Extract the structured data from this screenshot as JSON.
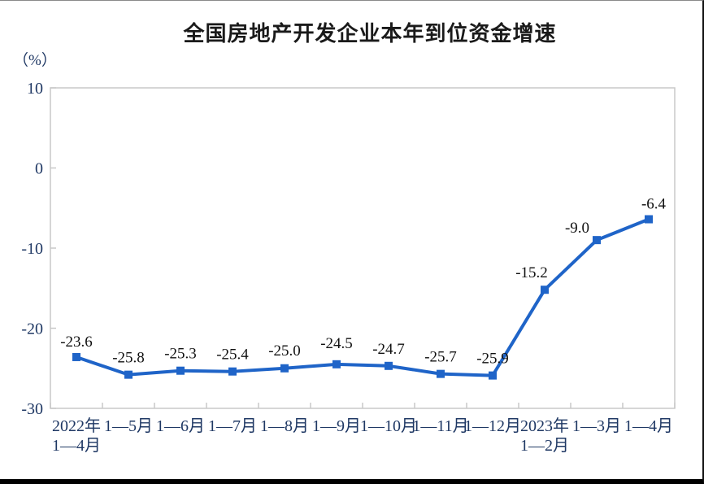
{
  "chart_data": {
    "type": "line",
    "title": "全国房地产开发企业本年到位资金增速",
    "unit_label": "（%）",
    "categories": [
      "2022年\n1—4月",
      "1—5月",
      "1—6月",
      "1—7月",
      "1—8月",
      "1—9月",
      "1—10月",
      "1—11月",
      "1—12月",
      "2023年\n1—2月",
      "1—3月",
      "1—4月"
    ],
    "values": [
      -23.6,
      -25.8,
      -25.3,
      -25.4,
      -25.0,
      -24.5,
      -24.7,
      -25.7,
      -25.9,
      -15.2,
      -9.0,
      -6.4
    ],
    "data_labels": [
      "-23.6",
      "-25.8",
      "-25.3",
      "-25.4",
      "-25.0",
      "-24.5",
      "-24.7",
      "-25.7",
      "-25.9",
      "-15.2",
      "-9.0",
      "-6.4"
    ],
    "y_ticks": [
      10,
      0,
      -10,
      -20,
      -30
    ],
    "ylim": [
      -30,
      10
    ],
    "grid": false,
    "legend": "none",
    "marker": "square",
    "line_color": "#1F64C8",
    "axis_color": "#C8C8C8",
    "tick_label_color": "#1F3864",
    "data_label_color": "#111111"
  }
}
